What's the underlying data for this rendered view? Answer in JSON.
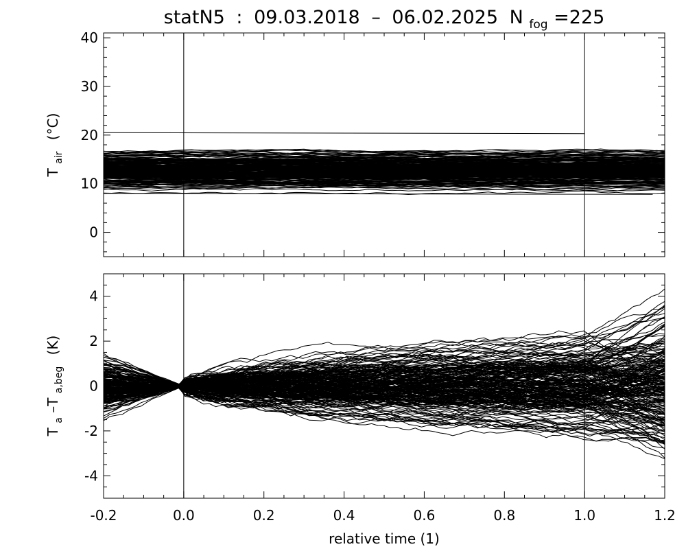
{
  "chart_data": {
    "type": "line",
    "title": {
      "station": "statN5",
      "separator": ":",
      "start_date": "09.03.2018",
      "dash": "–",
      "end_date": "06.02.2025",
      "n_symbol": "N",
      "n_subscript": "fog",
      "n_equals": "=225"
    },
    "xlabel": "relative time (1)",
    "xlim": [
      -0.2,
      1.2
    ],
    "x_ticks": [
      "-0.2",
      "0.0",
      "0.2",
      "0.4",
      "0.6",
      "0.8",
      "1.0",
      "1.2"
    ],
    "vertical_markers": [
      0.0,
      1.0
    ],
    "panels": [
      {
        "name": "air-temperature",
        "ylabel_parts": [
          "T",
          "air",
          "(°C)"
        ],
        "ylim": [
          -5,
          41
        ],
        "y_ticks": [
          "0",
          "10",
          "20",
          "30",
          "40"
        ],
        "n_series": 225,
        "band": {
          "center": 12.5,
          "spread": 2.5,
          "min": 8,
          "max": 20.5
        }
      },
      {
        "name": "temperature-difference",
        "ylabel_parts": [
          "T",
          "a",
          "–T",
          "a,beg",
          "(K)"
        ],
        "ylim": [
          -5,
          5
        ],
        "y_ticks": [
          "-4",
          "-2",
          "0",
          "2",
          "4"
        ],
        "n_series": 225,
        "anchor_zero_at": 0.0
      }
    ],
    "grid": false,
    "legend": "none"
  }
}
